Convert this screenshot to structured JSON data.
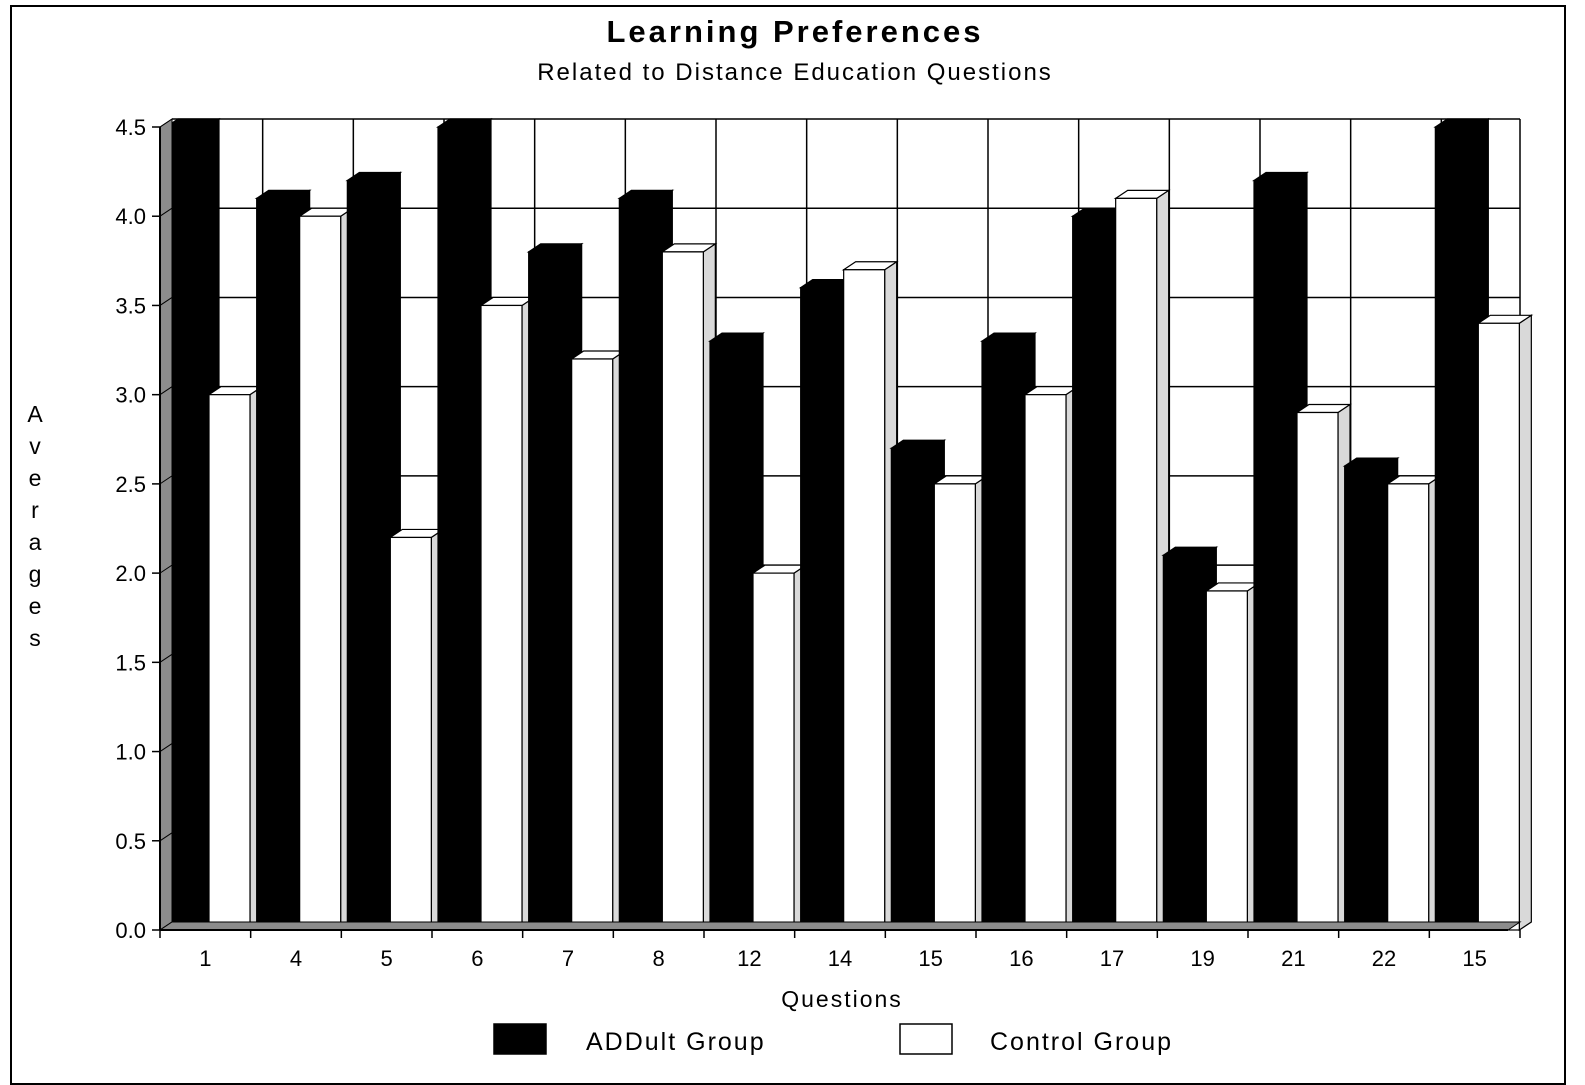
{
  "chart_data": {
    "type": "bar",
    "title": "Learning Preferences",
    "subtitle": "Related to Distance Education Questions",
    "xlabel": "Questions",
    "ylabel": "Averages",
    "ylim": [
      0,
      4.5
    ],
    "yticks": [
      "0.0",
      "0.5",
      "1.0",
      "1.5",
      "2.0",
      "2.5",
      "3.0",
      "3.5",
      "4.0",
      "4.5"
    ],
    "grid": true,
    "legend_position": "bottom",
    "categories": [
      "1",
      "4",
      "5",
      "6",
      "7",
      "8",
      "12",
      "14",
      "15",
      "16",
      "17",
      "19",
      "21",
      "22",
      "15"
    ],
    "series": [
      {
        "name": "ADDult Group",
        "color": "#000000",
        "values": [
          4.5,
          4.1,
          4.2,
          4.5,
          3.8,
          4.1,
          3.3,
          3.6,
          2.7,
          3.3,
          4.0,
          2.1,
          4.2,
          2.6,
          4.5
        ]
      },
      {
        "name": "Control Group",
        "color": "#ffffff",
        "values": [
          3.0,
          4.0,
          2.2,
          3.5,
          3.2,
          3.8,
          2.0,
          3.7,
          2.5,
          3.0,
          4.1,
          1.9,
          2.9,
          2.5,
          3.4
        ]
      }
    ]
  }
}
